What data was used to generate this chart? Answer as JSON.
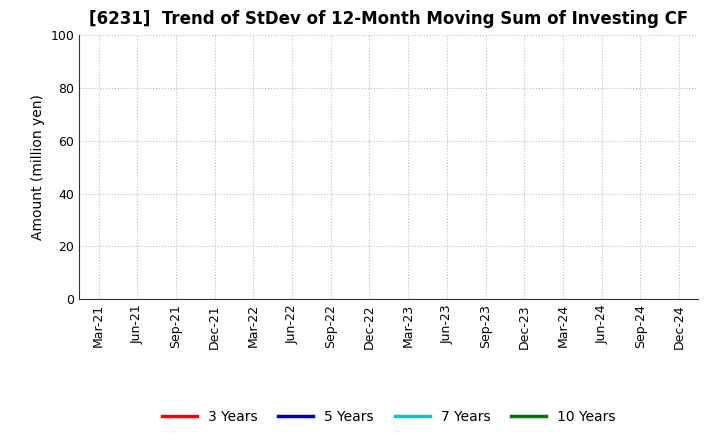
{
  "title": "[6231]  Trend of StDev of 12-Month Moving Sum of Investing CF",
  "ylabel": "Amount (million yen)",
  "ylim": [
    0,
    100
  ],
  "yticks": [
    0,
    20,
    40,
    60,
    80,
    100
  ],
  "x_labels": [
    "Mar-21",
    "Jun-21",
    "Sep-21",
    "Dec-21",
    "Mar-22",
    "Jun-22",
    "Sep-22",
    "Dec-22",
    "Mar-23",
    "Jun-23",
    "Sep-23",
    "Dec-23",
    "Mar-24",
    "Jun-24",
    "Sep-24",
    "Dec-24"
  ],
  "legend_entries": [
    {
      "label": "3 Years",
      "color": "#ff0000"
    },
    {
      "label": "5 Years",
      "color": "#0000cc"
    },
    {
      "label": "7 Years",
      "color": "#00cccc"
    },
    {
      "label": "10 Years",
      "color": "#007700"
    }
  ],
  "background_color": "#ffffff",
  "grid_color": "#bbbbbb",
  "title_fontsize": 12,
  "axis_label_fontsize": 10,
  "tick_fontsize": 9,
  "legend_fontsize": 10
}
